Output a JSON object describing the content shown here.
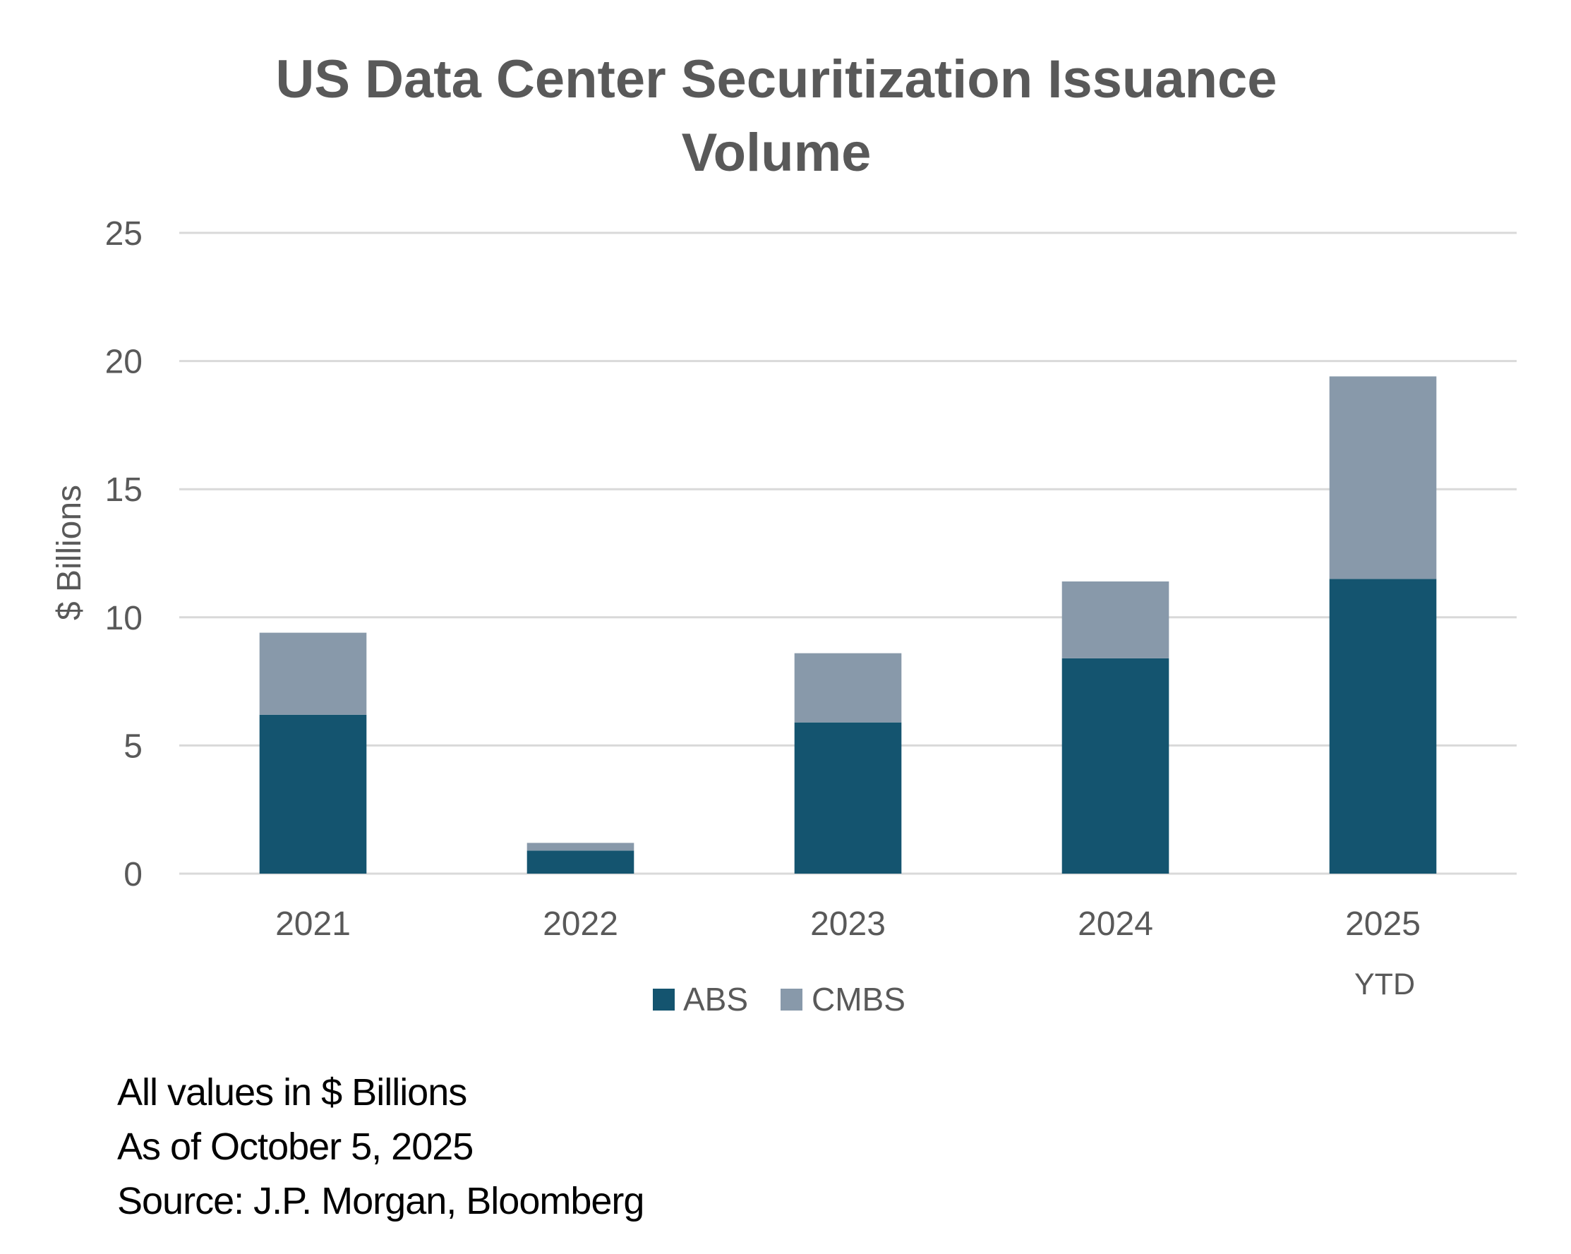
{
  "chart_data": {
    "type": "bar",
    "stacked": true,
    "title": "US Data Center Securitization Issuance Volume",
    "title_lines": [
      "US Data Center Securitization Issuance",
      "Volume"
    ],
    "xlabel": "",
    "ylabel": "$ Billions",
    "categories": [
      "2021",
      "2022",
      "2023",
      "2024",
      "2025"
    ],
    "category_annotations": [
      {
        "category": "2025",
        "text": "YTD"
      }
    ],
    "series": [
      {
        "name": "ABS",
        "color": "#14546f",
        "values": [
          6.2,
          0.9,
          5.9,
          8.4,
          11.5
        ]
      },
      {
        "name": "CMBS",
        "color": "#8899aa",
        "values": [
          3.2,
          0.3,
          2.7,
          3.0,
          7.9
        ]
      }
    ],
    "ylim": [
      0,
      25
    ],
    "yticks": [
      0,
      5,
      10,
      15,
      20,
      25
    ],
    "grid": true,
    "legend": {
      "position": "bottom",
      "entries": [
        "ABS",
        "CMBS"
      ]
    }
  },
  "footnotes": [
    "All values in $ Billions",
    "As of October 5, 2025",
    "Source: J.P. Morgan, Bloomberg"
  ]
}
